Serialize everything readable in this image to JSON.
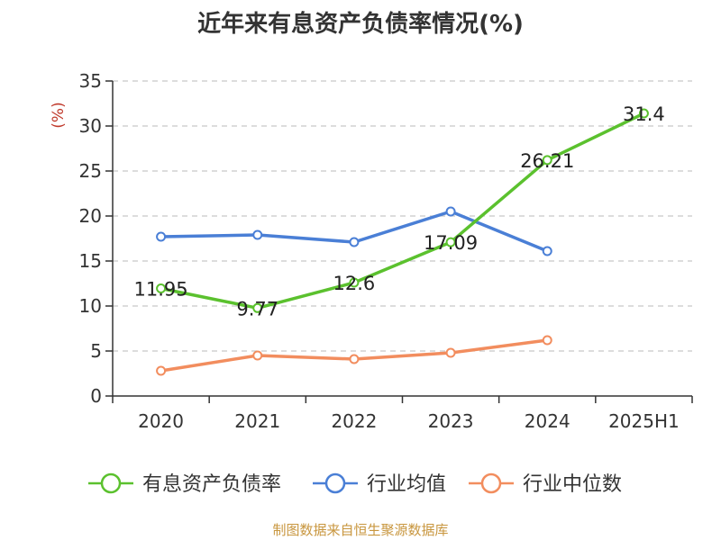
{
  "title": "近年来有息资产负债率情况(%)",
  "source": "制图数据来自恒生聚源数据库",
  "chart_data": {
    "type": "line",
    "ylabel": "(%)",
    "ylim": [
      0,
      35
    ],
    "yticks": [
      0,
      5,
      10,
      15,
      20,
      25,
      30,
      35
    ],
    "grid": true,
    "legend_position": "bottom",
    "categories": [
      "2020",
      "2021",
      "2022",
      "2023",
      "2024",
      "2025H1"
    ],
    "series": [
      {
        "name": "有息资产负债率",
        "color": "#5bc12e",
        "values": [
          11.95,
          9.77,
          12.6,
          17.09,
          26.21,
          31.4
        ],
        "labels": [
          "11.95",
          "9.77",
          "12.6",
          "17.09",
          "26.21",
          "31.4"
        ]
      },
      {
        "name": "行业均值",
        "color": "#4a7fd6",
        "values": [
          17.7,
          17.9,
          17.1,
          20.5,
          16.1,
          null
        ]
      },
      {
        "name": "行业中位数",
        "color": "#f28d5e",
        "values": [
          2.8,
          4.5,
          4.1,
          4.8,
          6.2,
          null
        ]
      }
    ]
  }
}
